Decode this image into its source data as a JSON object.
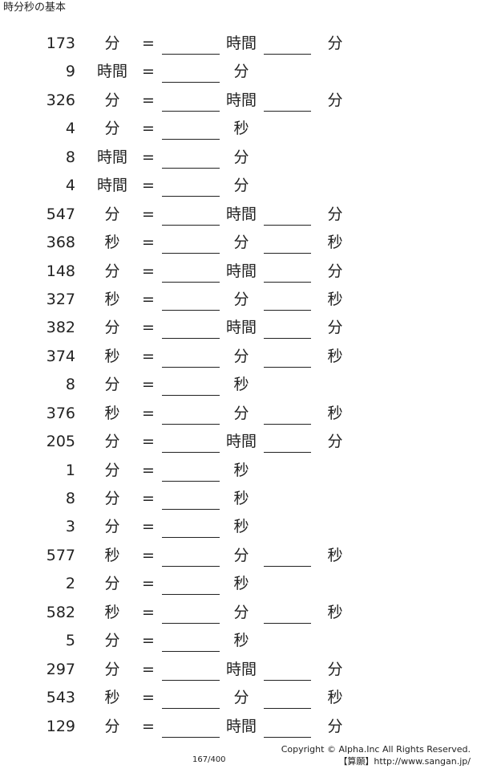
{
  "title": "時分秒の基本",
  "equals_sign": "=",
  "rows": [
    {
      "value": "173",
      "unit": "分",
      "unit2": "時間",
      "unit3": "分"
    },
    {
      "value": "9",
      "unit": "時間",
      "unit2": "分",
      "unit3": ""
    },
    {
      "value": "326",
      "unit": "分",
      "unit2": "時間",
      "unit3": "分"
    },
    {
      "value": "4",
      "unit": "分",
      "unit2": "秒",
      "unit3": ""
    },
    {
      "value": "8",
      "unit": "時間",
      "unit2": "分",
      "unit3": ""
    },
    {
      "value": "4",
      "unit": "時間",
      "unit2": "分",
      "unit3": ""
    },
    {
      "value": "547",
      "unit": "分",
      "unit2": "時間",
      "unit3": "分"
    },
    {
      "value": "368",
      "unit": "秒",
      "unit2": "分",
      "unit3": "秒"
    },
    {
      "value": "148",
      "unit": "分",
      "unit2": "時間",
      "unit3": "分"
    },
    {
      "value": "327",
      "unit": "秒",
      "unit2": "分",
      "unit3": "秒"
    },
    {
      "value": "382",
      "unit": "分",
      "unit2": "時間",
      "unit3": "分"
    },
    {
      "value": "374",
      "unit": "秒",
      "unit2": "分",
      "unit3": "秒"
    },
    {
      "value": "8",
      "unit": "分",
      "unit2": "秒",
      "unit3": ""
    },
    {
      "value": "376",
      "unit": "秒",
      "unit2": "分",
      "unit3": "秒"
    },
    {
      "value": "205",
      "unit": "分",
      "unit2": "時間",
      "unit3": "分"
    },
    {
      "value": "1",
      "unit": "分",
      "unit2": "秒",
      "unit3": ""
    },
    {
      "value": "8",
      "unit": "分",
      "unit2": "秒",
      "unit3": ""
    },
    {
      "value": "3",
      "unit": "分",
      "unit2": "秒",
      "unit3": ""
    },
    {
      "value": "577",
      "unit": "秒",
      "unit2": "分",
      "unit3": "秒"
    },
    {
      "value": "2",
      "unit": "分",
      "unit2": "秒",
      "unit3": ""
    },
    {
      "value": "582",
      "unit": "秒",
      "unit2": "分",
      "unit3": "秒"
    },
    {
      "value": "5",
      "unit": "分",
      "unit2": "秒",
      "unit3": ""
    },
    {
      "value": "297",
      "unit": "分",
      "unit2": "時間",
      "unit3": "分"
    },
    {
      "value": "543",
      "unit": "秒",
      "unit2": "分",
      "unit3": "秒"
    },
    {
      "value": "129",
      "unit": "分",
      "unit2": "時間",
      "unit3": "分"
    }
  ],
  "footer": {
    "copyright": "Copyright © Alpha.Inc All Rights Reserved.",
    "site": "【算願】http://www.sangan.jp/",
    "page_number": "167/400"
  }
}
